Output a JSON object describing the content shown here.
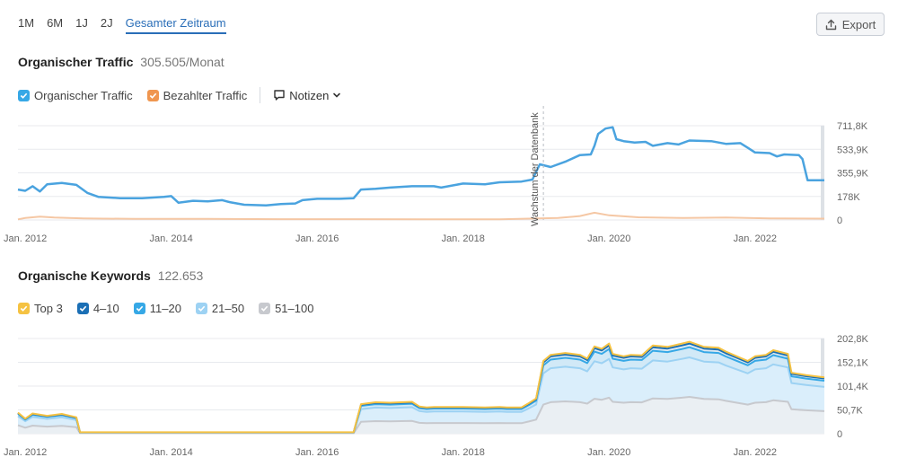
{
  "periods": [
    "1M",
    "6M",
    "1J",
    "2J",
    "Gesamter Zeitraum"
  ],
  "active_period": "Gesamter Zeitraum",
  "export_label": "Export",
  "traffic": {
    "title": "Organischer Traffic",
    "metric": "305.505/Monat",
    "legend": [
      "Organischer Traffic",
      "Bezahlter Traffic"
    ],
    "notes_label": "Notizen",
    "db_growth_label": "Wachstum der Datenbank"
  },
  "keywords": {
    "title": "Organische Keywords",
    "metric": "122.653",
    "legend": [
      "Top 3",
      "4–10",
      "11–20",
      "21–50",
      "51–100"
    ]
  },
  "colors": {
    "organic": "#4aa3df",
    "paid": "#f5c7a4",
    "top3": "#f5c242",
    "pos4_10": "#1b6fb5",
    "pos11_20": "#36a8e6",
    "pos21_50": "#9dd2f3",
    "pos51_100": "#c7c9ce",
    "accent": "#2a6eb8"
  },
  "chart_data": [
    {
      "type": "line",
      "title": "Organischer Traffic",
      "x_tick_labels": [
        "Jan. 2012",
        "Jan. 2014",
        "Jan. 2016",
        "Jan. 2018",
        "Jan. 2020",
        "Jan. 2022"
      ],
      "y_tick_labels": [
        "711,8K",
        "533,9K",
        "355,9K",
        "178K",
        "0"
      ],
      "ylim": [
        0,
        711800
      ],
      "xlim": [
        2011.9,
        2022.95
      ],
      "grid": true,
      "annotation": {
        "x": 2019.1,
        "label": "Wachstum der Datenbank"
      },
      "series": [
        {
          "name": "Organischer Traffic",
          "points": [
            [
              2011.9,
              230000
            ],
            [
              2012.0,
              220000
            ],
            [
              2012.1,
              255000
            ],
            [
              2012.2,
              215000
            ],
            [
              2012.3,
              270000
            ],
            [
              2012.5,
              280000
            ],
            [
              2012.7,
              265000
            ],
            [
              2012.85,
              205000
            ],
            [
              2013.0,
              175000
            ],
            [
              2013.3,
              165000
            ],
            [
              2013.6,
              165000
            ],
            [
              2013.9,
              175000
            ],
            [
              2014.0,
              180000
            ],
            [
              2014.1,
              130000
            ],
            [
              2014.3,
              145000
            ],
            [
              2014.5,
              140000
            ],
            [
              2014.7,
              150000
            ],
            [
              2014.8,
              135000
            ],
            [
              2015.0,
              115000
            ],
            [
              2015.3,
              110000
            ],
            [
              2015.5,
              120000
            ],
            [
              2015.7,
              125000
            ],
            [
              2015.8,
              150000
            ],
            [
              2016.0,
              160000
            ],
            [
              2016.3,
              160000
            ],
            [
              2016.5,
              165000
            ],
            [
              2016.6,
              230000
            ],
            [
              2016.8,
              235000
            ],
            [
              2017.0,
              245000
            ],
            [
              2017.3,
              255000
            ],
            [
              2017.6,
              255000
            ],
            [
              2017.7,
              245000
            ],
            [
              2017.9,
              265000
            ],
            [
              2018.0,
              275000
            ],
            [
              2018.3,
              270000
            ],
            [
              2018.5,
              285000
            ],
            [
              2018.8,
              290000
            ],
            [
              2018.95,
              305000
            ],
            [
              2019.05,
              420000
            ],
            [
              2019.2,
              400000
            ],
            [
              2019.4,
              440000
            ],
            [
              2019.6,
              490000
            ],
            [
              2019.75,
              495000
            ],
            [
              2019.8,
              560000
            ],
            [
              2019.85,
              650000
            ],
            [
              2019.95,
              690000
            ],
            [
              2020.05,
              700000
            ],
            [
              2020.1,
              610000
            ],
            [
              2020.2,
              595000
            ],
            [
              2020.35,
              585000
            ],
            [
              2020.5,
              590000
            ],
            [
              2020.6,
              560000
            ],
            [
              2020.8,
              580000
            ],
            [
              2020.95,
              570000
            ],
            [
              2021.1,
              600000
            ],
            [
              2021.4,
              595000
            ],
            [
              2021.6,
              575000
            ],
            [
              2021.8,
              580000
            ],
            [
              2021.9,
              545000
            ],
            [
              2022.0,
              510000
            ],
            [
              2022.2,
              505000
            ],
            [
              2022.3,
              480000
            ],
            [
              2022.4,
              495000
            ],
            [
              2022.6,
              490000
            ],
            [
              2022.65,
              460000
            ],
            [
              2022.72,
              300000
            ],
            [
              2022.95,
              300000
            ]
          ]
        },
        {
          "name": "Bezahlter Traffic",
          "points": [
            [
              2011.9,
              5000
            ],
            [
              2012.0,
              15000
            ],
            [
              2012.2,
              25000
            ],
            [
              2012.4,
              18000
            ],
            [
              2012.8,
              12000
            ],
            [
              2013.5,
              8000
            ],
            [
              2014.5,
              8000
            ],
            [
              2015.5,
              6000
            ],
            [
              2016.5,
              6000
            ],
            [
              2017.5,
              5000
            ],
            [
              2018.5,
              5000
            ],
            [
              2019.3,
              15000
            ],
            [
              2019.6,
              30000
            ],
            [
              2019.8,
              55000
            ],
            [
              2020.0,
              35000
            ],
            [
              2020.4,
              20000
            ],
            [
              2021.0,
              15000
            ],
            [
              2021.6,
              18000
            ],
            [
              2022.2,
              12000
            ],
            [
              2022.95,
              10000
            ]
          ]
        }
      ]
    },
    {
      "type": "area",
      "title": "Organische Keywords",
      "x_tick_labels": [
        "Jan. 2012",
        "Jan. 2014",
        "Jan. 2016",
        "Jan. 2018",
        "Jan. 2020",
        "Jan. 2022"
      ],
      "y_tick_labels": [
        "202,8K",
        "152,1K",
        "101,4K",
        "50,7K",
        "0"
      ],
      "ylim": [
        0,
        202800
      ],
      "xlim": [
        2011.9,
        2022.95
      ],
      "stacked": true,
      "grid": true,
      "total": [
        [
          2011.9,
          45000
        ],
        [
          2012.0,
          32000
        ],
        [
          2012.1,
          43000
        ],
        [
          2012.3,
          38000
        ],
        [
          2012.5,
          42000
        ],
        [
          2012.7,
          35000
        ],
        [
          2012.75,
          3000
        ],
        [
          2016.5,
          3000
        ],
        [
          2016.6,
          63000
        ],
        [
          2016.8,
          67000
        ],
        [
          2017.0,
          66000
        ],
        [
          2017.3,
          68000
        ],
        [
          2017.4,
          58000
        ],
        [
          2017.5,
          56000
        ],
        [
          2017.6,
          57000
        ],
        [
          2018.0,
          57000
        ],
        [
          2018.3,
          56000
        ],
        [
          2018.5,
          57000
        ],
        [
          2018.6,
          56000
        ],
        [
          2018.8,
          56000
        ],
        [
          2018.9,
          65000
        ],
        [
          2019.0,
          75000
        ],
        [
          2019.1,
          155000
        ],
        [
          2019.2,
          168000
        ],
        [
          2019.4,
          172000
        ],
        [
          2019.6,
          168000
        ],
        [
          2019.7,
          160000
        ],
        [
          2019.8,
          186000
        ],
        [
          2019.9,
          181000
        ],
        [
          2020.0,
          192000
        ],
        [
          2020.05,
          170000
        ],
        [
          2020.2,
          165000
        ],
        [
          2020.3,
          168000
        ],
        [
          2020.45,
          167000
        ],
        [
          2020.6,
          188000
        ],
        [
          2020.8,
          185000
        ],
        [
          2021.0,
          192000
        ],
        [
          2021.1,
          196000
        ],
        [
          2021.3,
          185000
        ],
        [
          2021.5,
          183000
        ],
        [
          2021.6,
          175000
        ],
        [
          2021.75,
          165000
        ],
        [
          2021.9,
          155000
        ],
        [
          2022.0,
          165000
        ],
        [
          2022.15,
          168000
        ],
        [
          2022.25,
          178000
        ],
        [
          2022.45,
          170000
        ],
        [
          2022.5,
          130000
        ],
        [
          2022.7,
          125000
        ],
        [
          2022.95,
          120000
        ]
      ],
      "series_share": [
        {
          "name": "Top 3",
          "share": 0.02
        },
        {
          "name": "4–10",
          "share": 0.04
        },
        {
          "name": "11–20",
          "share": 0.11
        },
        {
          "name": "21–50",
          "share": 0.43
        },
        {
          "name": "51–100",
          "share": 0.4
        }
      ]
    }
  ]
}
